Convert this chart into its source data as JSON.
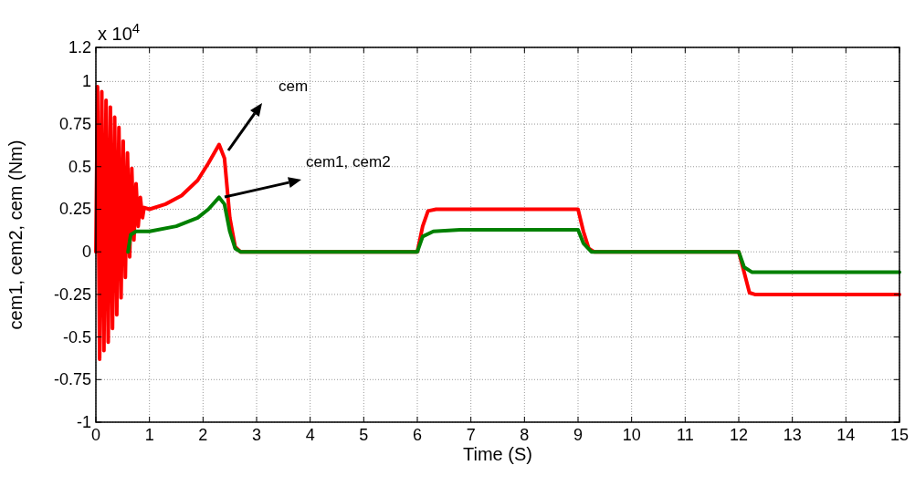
{
  "chart_data": {
    "type": "line",
    "xlabel": "Time (S)",
    "ylabel": "cem1, cem2, cem (Nm)",
    "annotations": [
      "x 10$^{4}$",
      "cem",
      "cem1, cem2"
    ],
    "xlim": [
      0,
      15
    ],
    "xticks": [
      0,
      1,
      2,
      3,
      4,
      5,
      6,
      7,
      8,
      9,
      10,
      11,
      12,
      13,
      14,
      15
    ],
    "ylim": [
      -1,
      1.2
    ],
    "yticks": [
      -1,
      -0.75,
      -0.5,
      -0.25,
      0,
      0.25,
      0.5,
      0.75,
      1,
      1.2
    ],
    "grid": true,
    "line_style": "solid",
    "series": [
      {
        "color": "#ff0000",
        "x": [
          0,
          0.03,
          0.07,
          0.11,
          0.15,
          0.19,
          0.23,
          0.27,
          0.31,
          0.35,
          0.39,
          0.43,
          0.47,
          0.51,
          0.55,
          0.59,
          0.63,
          0.67,
          0.71,
          0.75,
          0.79,
          0.83,
          0.87,
          0.9,
          1.0,
          1.3,
          1.6,
          1.9,
          2.1,
          2.3,
          2.4,
          2.5,
          2.6,
          2.7,
          6,
          6.1,
          6.2,
          6.35,
          9,
          9.1,
          9.2,
          9.3,
          12,
          12.1,
          12.2,
          12.3,
          15
        ],
        "values": [
          0,
          0.97,
          -0.63,
          0.94,
          -0.58,
          0.89,
          -0.53,
          0.85,
          -0.45,
          0.79,
          -0.37,
          0.73,
          -0.27,
          0.65,
          -0.15,
          0.58,
          -0.03,
          0.49,
          0.07,
          0.4,
          0.15,
          0.32,
          0.2,
          0.26,
          0.25,
          0.28,
          0.33,
          0.42,
          0.52,
          0.63,
          0.55,
          0.2,
          0.03,
          0,
          0,
          0.15,
          0.24,
          0.25,
          0.25,
          0.12,
          0.02,
          0,
          0,
          -0.12,
          -0.24,
          -0.25,
          -0.25
        ]
      },
      {
        "color": "#008000",
        "x": [
          0.6,
          0.65,
          0.75,
          1.0,
          1.5,
          1.9,
          2.1,
          2.3,
          2.4,
          2.5,
          2.6,
          2.7,
          6,
          6.1,
          6.3,
          6.8,
          9,
          9.1,
          9.25,
          12,
          12.1,
          12.25,
          15
        ],
        "values": [
          0,
          0.1,
          0.12,
          0.12,
          0.15,
          0.2,
          0.25,
          0.32,
          0.28,
          0.12,
          0.02,
          0,
          0,
          0.09,
          0.12,
          0.13,
          0.13,
          0.05,
          0,
          0,
          -0.09,
          -0.12,
          -0.12
        ]
      }
    ]
  }
}
